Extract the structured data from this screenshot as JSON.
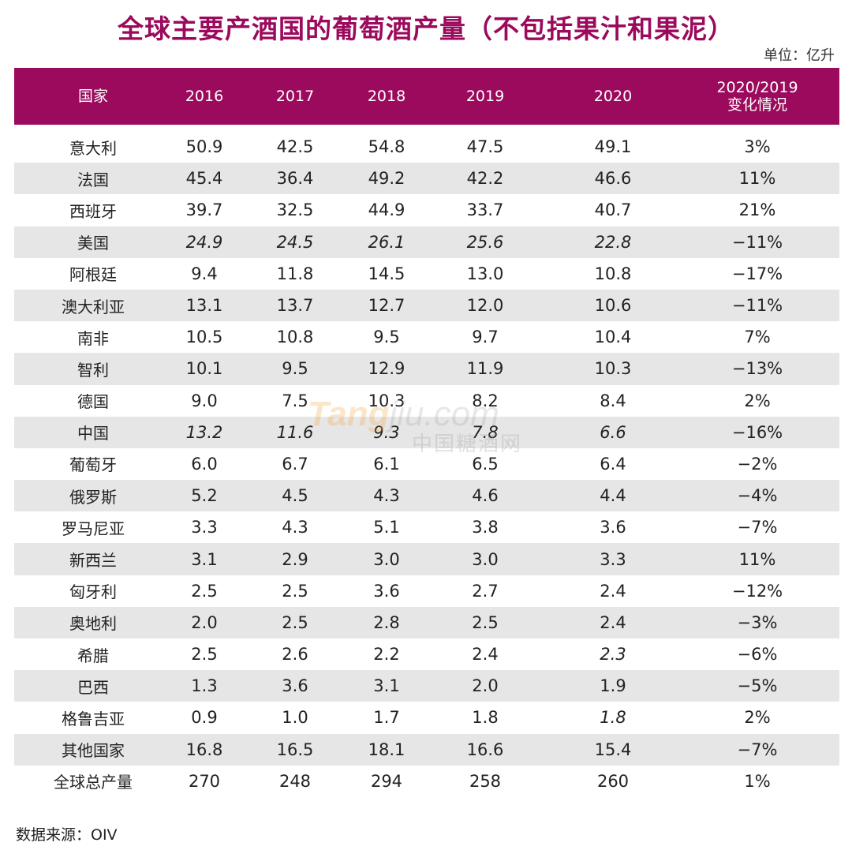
{
  "title": "全球主要产酒国的葡萄酒产量（不包括果汁和果泥）",
  "unit": "单位：亿升",
  "header": {
    "country": "国家",
    "y2016": "2016",
    "y2017": "2017",
    "y2018": "2018",
    "y2019": "2019",
    "y2020": "2020",
    "change_line1": "2020/2019",
    "change_line2": "变化情况"
  },
  "rows": [
    {
      "country": "意大利",
      "v2016": "50.9",
      "v2017": "42.5",
      "v2018": "54.8",
      "v2019": "47.5",
      "v2020": "49.1",
      "change": "3%"
    },
    {
      "country": "法国",
      "v2016": "45.4",
      "v2017": "36.4",
      "v2018": "49.2",
      "v2019": "42.2",
      "v2020": "46.6",
      "change": "11%"
    },
    {
      "country": "西班牙",
      "v2016": "39.7",
      "v2017": "32.5",
      "v2018": "44.9",
      "v2019": "33.7",
      "v2020": "40.7",
      "change": "21%"
    },
    {
      "country": "美国",
      "v2016": "24.9",
      "v2017": "24.5",
      "v2018": "26.1",
      "v2019": "25.6",
      "v2020": "22.8",
      "change": "−11%"
    },
    {
      "country": "阿根廷",
      "v2016": "9.4",
      "v2017": "11.8",
      "v2018": "14.5",
      "v2019": "13.0",
      "v2020": "10.8",
      "change": "−17%"
    },
    {
      "country": "澳大利亚",
      "v2016": "13.1",
      "v2017": "13.7",
      "v2018": "12.7",
      "v2019": "12.0",
      "v2020": "10.6",
      "change": "−11%"
    },
    {
      "country": "南非",
      "v2016": "10.5",
      "v2017": "10.8",
      "v2018": "9.5",
      "v2019": "9.7",
      "v2020": "10.4",
      "change": "7%"
    },
    {
      "country": "智利",
      "v2016": "10.1",
      "v2017": "9.5",
      "v2018": "12.9",
      "v2019": "11.9",
      "v2020": "10.3",
      "change": "−13%"
    },
    {
      "country": "德国",
      "v2016": "9.0",
      "v2017": "7.5",
      "v2018": "10.3",
      "v2019": "8.2",
      "v2020": "8.4",
      "change": "2%"
    },
    {
      "country": "中国",
      "v2016": "13.2",
      "v2017": "11.6",
      "v2018": "9.3",
      "v2019": "7.8",
      "v2020": "6.6",
      "change": "−16%"
    },
    {
      "country": "葡萄牙",
      "v2016": "6.0",
      "v2017": "6.7",
      "v2018": "6.1",
      "v2019": "6.5",
      "v2020": "6.4",
      "change": "−2%"
    },
    {
      "country": "俄罗斯",
      "v2016": "5.2",
      "v2017": "4.5",
      "v2018": "4.3",
      "v2019": "4.6",
      "v2020": "4.4",
      "change": "−4%"
    },
    {
      "country": "罗马尼亚",
      "v2016": "3.3",
      "v2017": "4.3",
      "v2018": "5.1",
      "v2019": "3.8",
      "v2020": "3.6",
      "change": "−7%"
    },
    {
      "country": "新西兰",
      "v2016": "3.1",
      "v2017": "2.9",
      "v2018": "3.0",
      "v2019": "3.0",
      "v2020": "3.3",
      "change": "11%"
    },
    {
      "country": "匈牙利",
      "v2016": "2.5",
      "v2017": "2.5",
      "v2018": "3.6",
      "v2019": "2.7",
      "v2020": "2.4",
      "change": "−12%"
    },
    {
      "country": "奥地利",
      "v2016": "2.0",
      "v2017": "2.5",
      "v2018": "2.8",
      "v2019": "2.5",
      "v2020": "2.4",
      "change": "−3%"
    },
    {
      "country": "希腊",
      "v2016": "2.5",
      "v2017": "2.6",
      "v2018": "2.2",
      "v2019": "2.4",
      "v2020": "2.3",
      "change": "−6%"
    },
    {
      "country": "巴西",
      "v2016": "1.3",
      "v2017": "3.6",
      "v2018": "3.1",
      "v2019": "2.0",
      "v2020": "1.9",
      "change": "−5%"
    },
    {
      "country": "格鲁吉亚",
      "v2016": "0.9",
      "v2017": "1.0",
      "v2018": "1.7",
      "v2019": "1.8",
      "v2020": "1.8",
      "change": "2%"
    },
    {
      "country": "其他国家",
      "v2016": "16.8",
      "v2017": "16.5",
      "v2018": "18.1",
      "v2019": "16.6",
      "v2020": "15.4",
      "change": "−7%"
    },
    {
      "country": "全球总产量",
      "v2016": "270",
      "v2017": "248",
      "v2018": "294",
      "v2019": "258",
      "v2020": "260",
      "change": "1%"
    }
  ],
  "source": "数据来源：OIV",
  "watermark": {
    "brand_a": "Tang",
    "brand_b": "jiu.com",
    "sub": "中国糖酒网"
  },
  "colors": {
    "header_bg": "#9b0a5c",
    "title": "#9b0a5c",
    "stripe": "#e6e6e6"
  }
}
